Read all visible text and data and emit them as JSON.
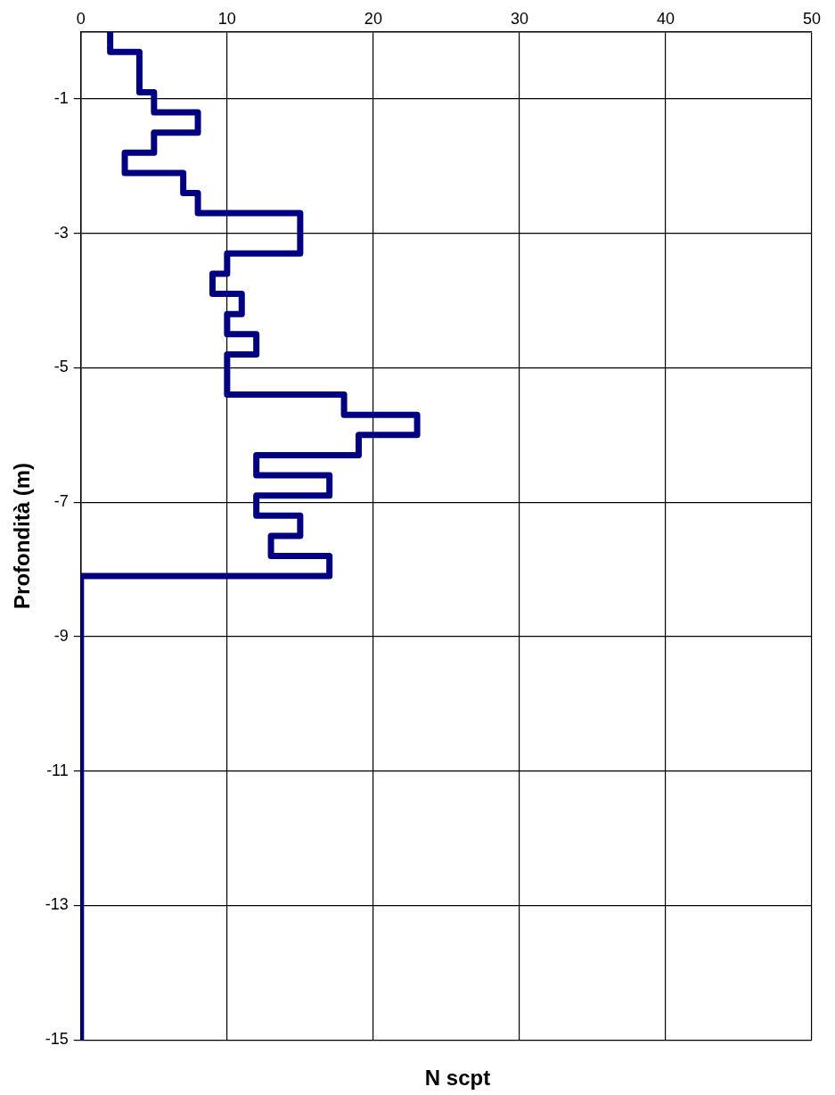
{
  "chart_data": {
    "type": "line",
    "xlabel": "N scpt",
    "ylabel": "Profondità (m)",
    "x": [
      2,
      2,
      4,
      4,
      5,
      5,
      8,
      8,
      5,
      5,
      3,
      3,
      7,
      7,
      8,
      8,
      15,
      15,
      10,
      10,
      9,
      9,
      11,
      11,
      10,
      10,
      12,
      12,
      10,
      10,
      18,
      18,
      23,
      23,
      19,
      19,
      12,
      12,
      17,
      17,
      12,
      12,
      15,
      15,
      13,
      13,
      17,
      17,
      0,
      0
    ],
    "values": [
      0,
      -0.3,
      -0.3,
      -0.9,
      -0.9,
      -1.2,
      -1.2,
      -1.5,
      -1.5,
      -1.8,
      -1.8,
      -2.1,
      -2.1,
      -2.4,
      -2.4,
      -2.7,
      -2.7,
      -3.3,
      -3.3,
      -3.6,
      -3.6,
      -3.9,
      -3.9,
      -4.2,
      -4.2,
      -4.5,
      -4.5,
      -4.8,
      -4.8,
      -5.4,
      -5.4,
      -5.7,
      -5.7,
      -6.0,
      -6.0,
      -6.3,
      -6.3,
      -6.6,
      -6.6,
      -6.9,
      -6.9,
      -7.2,
      -7.2,
      -7.5,
      -7.5,
      -7.8,
      -7.8,
      -8.1,
      -8.1,
      -15
    ],
    "color": "#000080",
    "xlim": [
      0,
      50
    ],
    "xticks": [
      0,
      10,
      20,
      30,
      40,
      50
    ],
    "ylim": [
      -15,
      0
    ],
    "yticks": [
      -1,
      -3,
      -5,
      -7,
      -9,
      -11,
      -13,
      -15
    ],
    "grid": true,
    "marker": "none",
    "line_style": "solid"
  }
}
